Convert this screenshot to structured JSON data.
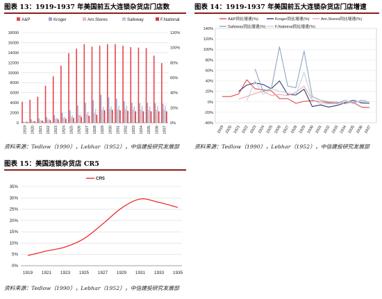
{
  "panels": {
    "p13": {
      "title": "图表 13：1919-1937 年美国前五大连锁杂货店门店数",
      "source": "资料来源：Tedlow（1990），Lebhar（1952），中信建投研究发展部"
    },
    "p14": {
      "title": "图表 14：1919-1937 年美国前五大连锁杂货店门店增速",
      "source": "资料来源：Tedlow（1990），Lebhar（1952），中信建投研究发展部"
    },
    "p15": {
      "title": "图表 15：美国连锁杂货店 CR5",
      "source": "资料来源：Tedlow（1990），Lebhar（1952），中信建投研究发展部"
    }
  },
  "colors": {
    "title_rule": "#8b1a1a",
    "ap": "#e8434b",
    "kroger": "#9aa6c6",
    "amstores": "#f3b7b9",
    "safeway": "#c0c6d8",
    "fnational": "#d93b41",
    "cr5": "#ef2a2a",
    "g_ap": "#e04848",
    "g_kroger": "#243e73",
    "g_amstores": "#f3a6a8",
    "g_safeway": "#8fa6c0",
    "g_fnational": "#c8cedc"
  },
  "chart_data": [
    {
      "id": "stores",
      "type": "bar",
      "categories": [
        "1919",
        "1920",
        "1921",
        "1922",
        "1923",
        "1924",
        "1925",
        "1926",
        "1927",
        "1928",
        "1929",
        "1930",
        "1931",
        "1932",
        "1933",
        "1934",
        "1935",
        "1936",
        "1937"
      ],
      "series": [
        {
          "name": "A&P",
          "values": [
            4200,
            4600,
            5200,
            7400,
            9300,
            11400,
            13900,
            14800,
            15700,
            15200,
            15400,
            15700,
            15700,
            15400,
            15100,
            15000,
            14900,
            13400,
            11900
          ]
        },
        {
          "name": "Kroger",
          "values": [
            200,
            700,
            900,
            1100,
            1500,
            2000,
            2500,
            3500,
            4000,
            4500,
            5600,
            5100,
            4800,
            4300,
            4000,
            3900,
            4000,
            3900,
            3800
          ]
        },
        {
          "name": "Am.Stores",
          "values": [
            100,
            300,
            400,
            600,
            800,
            1000,
            1200,
            1500,
            1700,
            2000,
            2600,
            2700,
            2700,
            2700,
            2700,
            2600,
            2600,
            2600,
            2600
          ]
        },
        {
          "name": "Safeway",
          "values": [
            300,
            400,
            600,
            800,
            1000,
            1200,
            1500,
            1700,
            2200,
            2800,
            3200,
            3300,
            3400,
            3400,
            3300,
            3400,
            3300,
            3400,
            3400
          ]
        },
        {
          "name": "F.National",
          "values": [
            200,
            300,
            400,
            500,
            700,
            800,
            1000,
            1200,
            1400,
            1600,
            2500,
            2600,
            2500,
            2400,
            2300,
            2300,
            2300,
            2300,
            2300
          ]
        }
      ],
      "y_left": {
        "min": 0,
        "max": 18000,
        "ticks": [
          "0",
          "2000",
          "4000",
          "6000",
          "8000",
          "10000",
          "12000",
          "14000",
          "16000",
          "18000"
        ]
      },
      "y_right": {
        "ticks": [
          "0%",
          "20%",
          "40%",
          "60%",
          "80%",
          "100%",
          "120%"
        ]
      },
      "legend": "top"
    },
    {
      "id": "growth",
      "type": "line",
      "x": [
        "1919",
        "1920",
        "1921",
        "1922",
        "1923",
        "1924",
        "1925",
        "1926",
        "1927",
        "1928",
        "1929",
        "1930",
        "1931",
        "1932",
        "1933",
        "1934",
        "1935",
        "1936",
        "1937"
      ],
      "series": [
        {
          "name": "A&P同比增速(%)",
          "values": [
            10,
            10,
            15,
            42,
            25,
            23,
            21,
            6,
            6,
            -3,
            1,
            2,
            0,
            -2,
            -2,
            -1,
            -1,
            -10,
            -11
          ]
        },
        {
          "name": "Kroger同比增速(%)",
          "values": [
            null,
            null,
            20,
            32,
            36,
            33,
            25,
            40,
            14,
            13,
            24,
            -9,
            -6,
            -10,
            -7,
            -2,
            3,
            -2,
            -3
          ]
        },
        {
          "name": "Am.Stores同比增速(%)",
          "values": [
            null,
            null,
            5,
            10,
            16,
            20,
            12,
            14,
            12,
            18,
            30,
            4,
            0,
            0,
            0,
            -4,
            0,
            0,
            0
          ]
        },
        {
          "name": "Safeway同比增速(%)",
          "values": [
            null,
            null,
            null,
            null,
            63,
            20,
            25,
            105,
            30,
            27,
            97,
            10,
            3,
            0,
            -3,
            3,
            -3,
            3,
            0
          ]
        },
        {
          "name": "F.National同比增速(%)",
          "values": [
            null,
            null,
            null,
            2,
            40,
            14,
            25,
            20,
            17,
            14,
            56,
            4,
            -4,
            -4,
            -4,
            0,
            0,
            0,
            0
          ]
        }
      ],
      "y": {
        "min": -40,
        "max": 140,
        "ticks": [
          "-40%",
          "-20%",
          "0%",
          "20%",
          "40%",
          "60%",
          "80%",
          "100%",
          "120%",
          "140%"
        ]
      },
      "legend": "top"
    },
    {
      "id": "cr5",
      "type": "line",
      "x": [
        "1919",
        "1921",
        "1923",
        "1925",
        "1927",
        "1929",
        "1931",
        "1933",
        "1935"
      ],
      "series": [
        {
          "name": "CR5",
          "values": [
            4.5,
            6.5,
            8.3,
            12,
            18.5,
            25.5,
            29.5,
            28,
            25.8
          ]
        }
      ],
      "y": {
        "min": 0,
        "max": 35,
        "ticks": [
          "0%",
          "5%",
          "10%",
          "15%",
          "20%",
          "25%",
          "30%",
          "35%"
        ]
      },
      "legend": "top"
    }
  ]
}
